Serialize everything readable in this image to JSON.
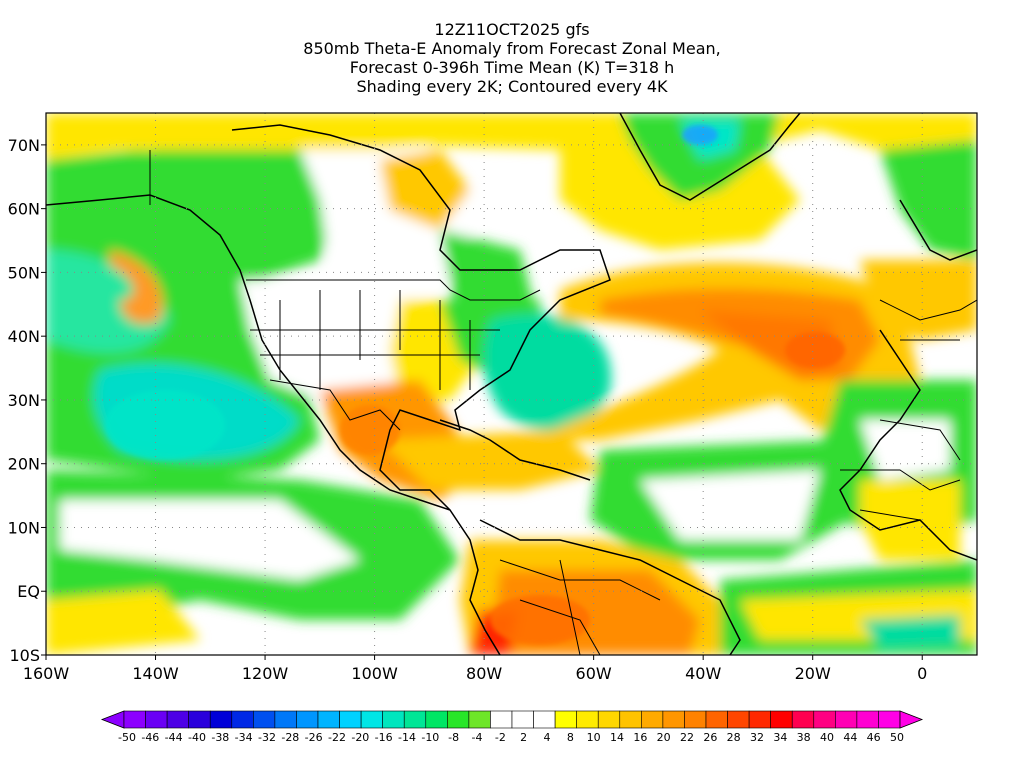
{
  "title": {
    "line1": "12Z11OCT2025 gfs",
    "line2": "850mb Theta-E Anomaly from Forecast Zonal Mean,",
    "line3": "Forecast 0-396h Time Mean (K) T=318 h",
    "line4": "Shading every 2K; Contoured every 4K"
  },
  "map": {
    "lon_range": [
      -160,
      10
    ],
    "lat_range": [
      -10,
      75
    ],
    "lon_ticks": [
      {
        "value": -160,
        "label": "160W"
      },
      {
        "value": -140,
        "label": "140W"
      },
      {
        "value": -120,
        "label": "120W"
      },
      {
        "value": -100,
        "label": "100W"
      },
      {
        "value": -80,
        "label": "80W"
      },
      {
        "value": -60,
        "label": "60W"
      },
      {
        "value": -40,
        "label": "40W"
      },
      {
        "value": -20,
        "label": "20W"
      },
      {
        "value": 0,
        "label": "0"
      }
    ],
    "lat_ticks": [
      {
        "value": -10,
        "label": "10S"
      },
      {
        "value": 0,
        "label": "EQ"
      },
      {
        "value": 10,
        "label": "10N"
      },
      {
        "value": 20,
        "label": "20N"
      },
      {
        "value": 30,
        "label": "30N"
      },
      {
        "value": 40,
        "label": "40N"
      },
      {
        "value": 50,
        "label": "50N"
      },
      {
        "value": 60,
        "label": "60N"
      },
      {
        "value": 70,
        "label": "70N"
      }
    ],
    "gridlines": "dotted"
  },
  "colorbar": {
    "labels": [
      "-50",
      "-46",
      "-44",
      "-40",
      "-38",
      "-34",
      "-32",
      "-28",
      "-26",
      "-22",
      "-20",
      "-16",
      "-14",
      "-10",
      "-8",
      "-4",
      "-2",
      "2",
      "4",
      "8",
      "10",
      "14",
      "16",
      "20",
      "22",
      "26",
      "28",
      "32",
      "34",
      "38",
      "40",
      "44",
      "46",
      "50"
    ],
    "colors": [
      "#8c00ff",
      "#6a00f5",
      "#4d00e6",
      "#2a00dc",
      "#0000d8",
      "#0028e6",
      "#0050f0",
      "#0078f8",
      "#0096ff",
      "#00b4ff",
      "#00d2ff",
      "#00e6e6",
      "#00e6be",
      "#00e696",
      "#00e664",
      "#28e628",
      "#6ee628",
      "#ffffff",
      "#ffffff",
      "#ffffff",
      "#ffff00",
      "#ffeb00",
      "#ffd700",
      "#ffc300",
      "#ffaa00",
      "#ff9600",
      "#ff8200",
      "#ff6400",
      "#ff4600",
      "#ff2800",
      "#ff0000",
      "#ff0050",
      "#ff0082",
      "#ff00b4",
      "#ff00d2",
      "#ff00e6"
    ]
  }
}
